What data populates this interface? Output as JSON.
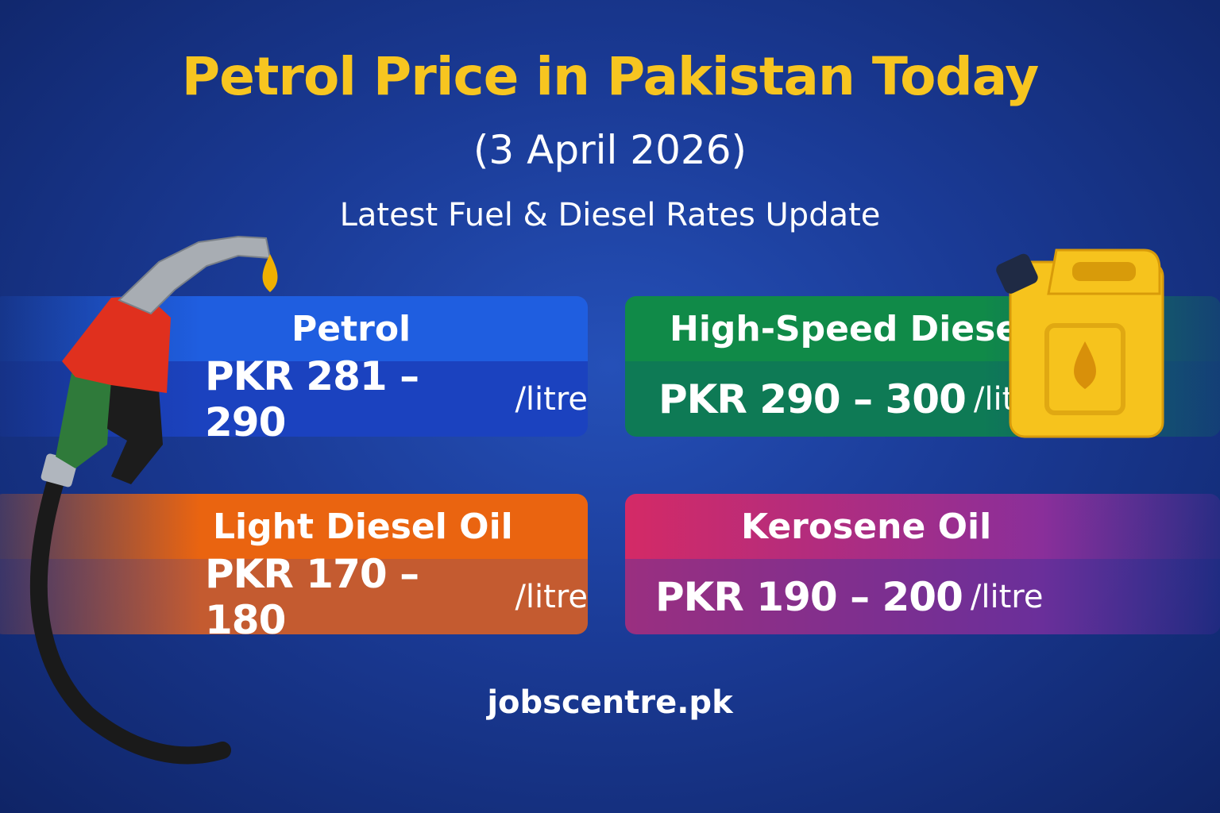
{
  "header": {
    "title": "Petrol Price in Pakistan Today",
    "date": "(3 April 2026)",
    "subtitle": "Latest Fuel & Diesel Rates Update"
  },
  "cards": [
    {
      "name": "Petrol",
      "price": "PKR 281 – 290",
      "unit": "/litre"
    },
    {
      "name": "High-Speed Diesel",
      "price": "PKR 290 – 300",
      "unit": "/litre"
    },
    {
      "name": "Light Diesel Oil",
      "price": "PKR 170 – 180",
      "unit": "/litre"
    },
    {
      "name": "Kerosene Oil",
      "price": "PKR 190 – 200",
      "unit": "/litre"
    }
  ],
  "footer": {
    "site": "jobscentre.pk"
  }
}
